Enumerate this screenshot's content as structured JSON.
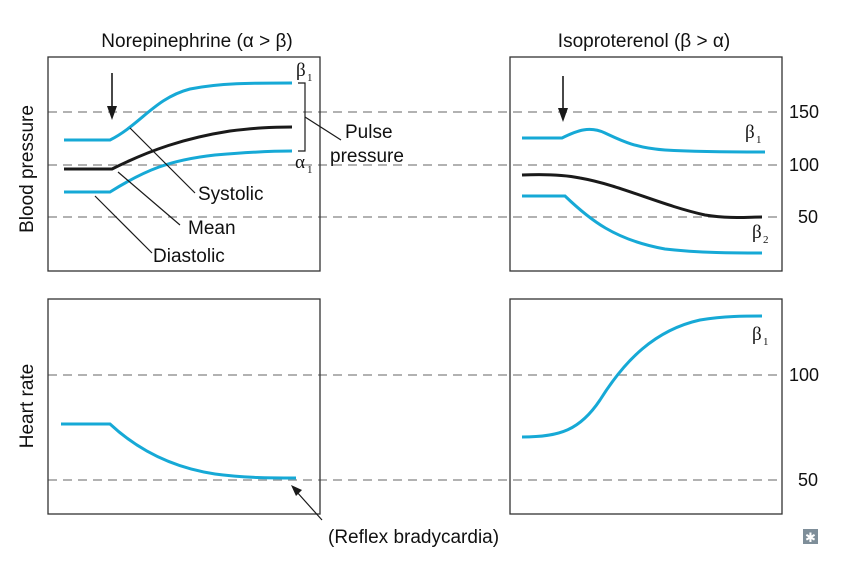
{
  "panels": {
    "norepinephrine_title": "Norepinephrine (α > β)",
    "isoproterenol_title": "Isoproterenol (β > α)"
  },
  "axes": {
    "bp_label": "Blood pressure",
    "hr_label": "Heart rate",
    "bp_ticks": [
      "150",
      "100",
      "50"
    ],
    "hr_ticks": [
      "100",
      "50"
    ]
  },
  "labels": {
    "pulse_1": "Pulse",
    "pulse_2": "pressure",
    "systolic": "Systolic",
    "mean": "Mean",
    "diastolic": "Diastolic",
    "reflex": "(Reflex bradycardia)"
  },
  "receptors": {
    "beta": "β",
    "alpha": "α",
    "sub1": "1",
    "sub2": "2"
  },
  "colors": {
    "curve": "#16a9d6",
    "mean_curve": "#1a1a1a",
    "grid": "#999999"
  },
  "corner_icon": "asterisk-box-icon"
}
